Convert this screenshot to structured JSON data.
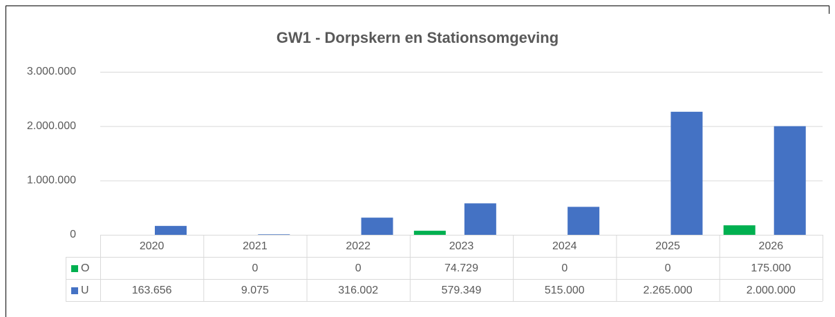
{
  "chart_data": {
    "type": "bar",
    "title": "GW1 - Dorpskern en Stationsomgeving",
    "categories": [
      "2020",
      "2021",
      "2022",
      "2023",
      "2024",
      "2025",
      "2026"
    ],
    "series": [
      {
        "name": "O",
        "color": "#00b050",
        "values": [
          null,
          0,
          0,
          74729,
          0,
          0,
          175000
        ],
        "value_labels": [
          null,
          "0",
          "0",
          "74.729",
          "0",
          "0",
          "175.000"
        ]
      },
      {
        "name": "U",
        "color": "#4472c4",
        "values": [
          163656,
          9075,
          316002,
          579349,
          515000,
          2265000,
          2000000
        ],
        "value_labels": [
          "163.656",
          "9.075",
          "316.002",
          "579.349",
          "515.000",
          "2.265.000",
          "2.000.000"
        ]
      }
    ],
    "ylim": [
      0,
      3000000
    ],
    "yticks": [
      0,
      {
        "value": 1000000,
        "label": "1.000.000"
      },
      {
        "value": 2000000,
        "label": "2.000.000"
      },
      {
        "value": 3000000,
        "label": "3.000.000"
      }
    ],
    "grid": true
  }
}
